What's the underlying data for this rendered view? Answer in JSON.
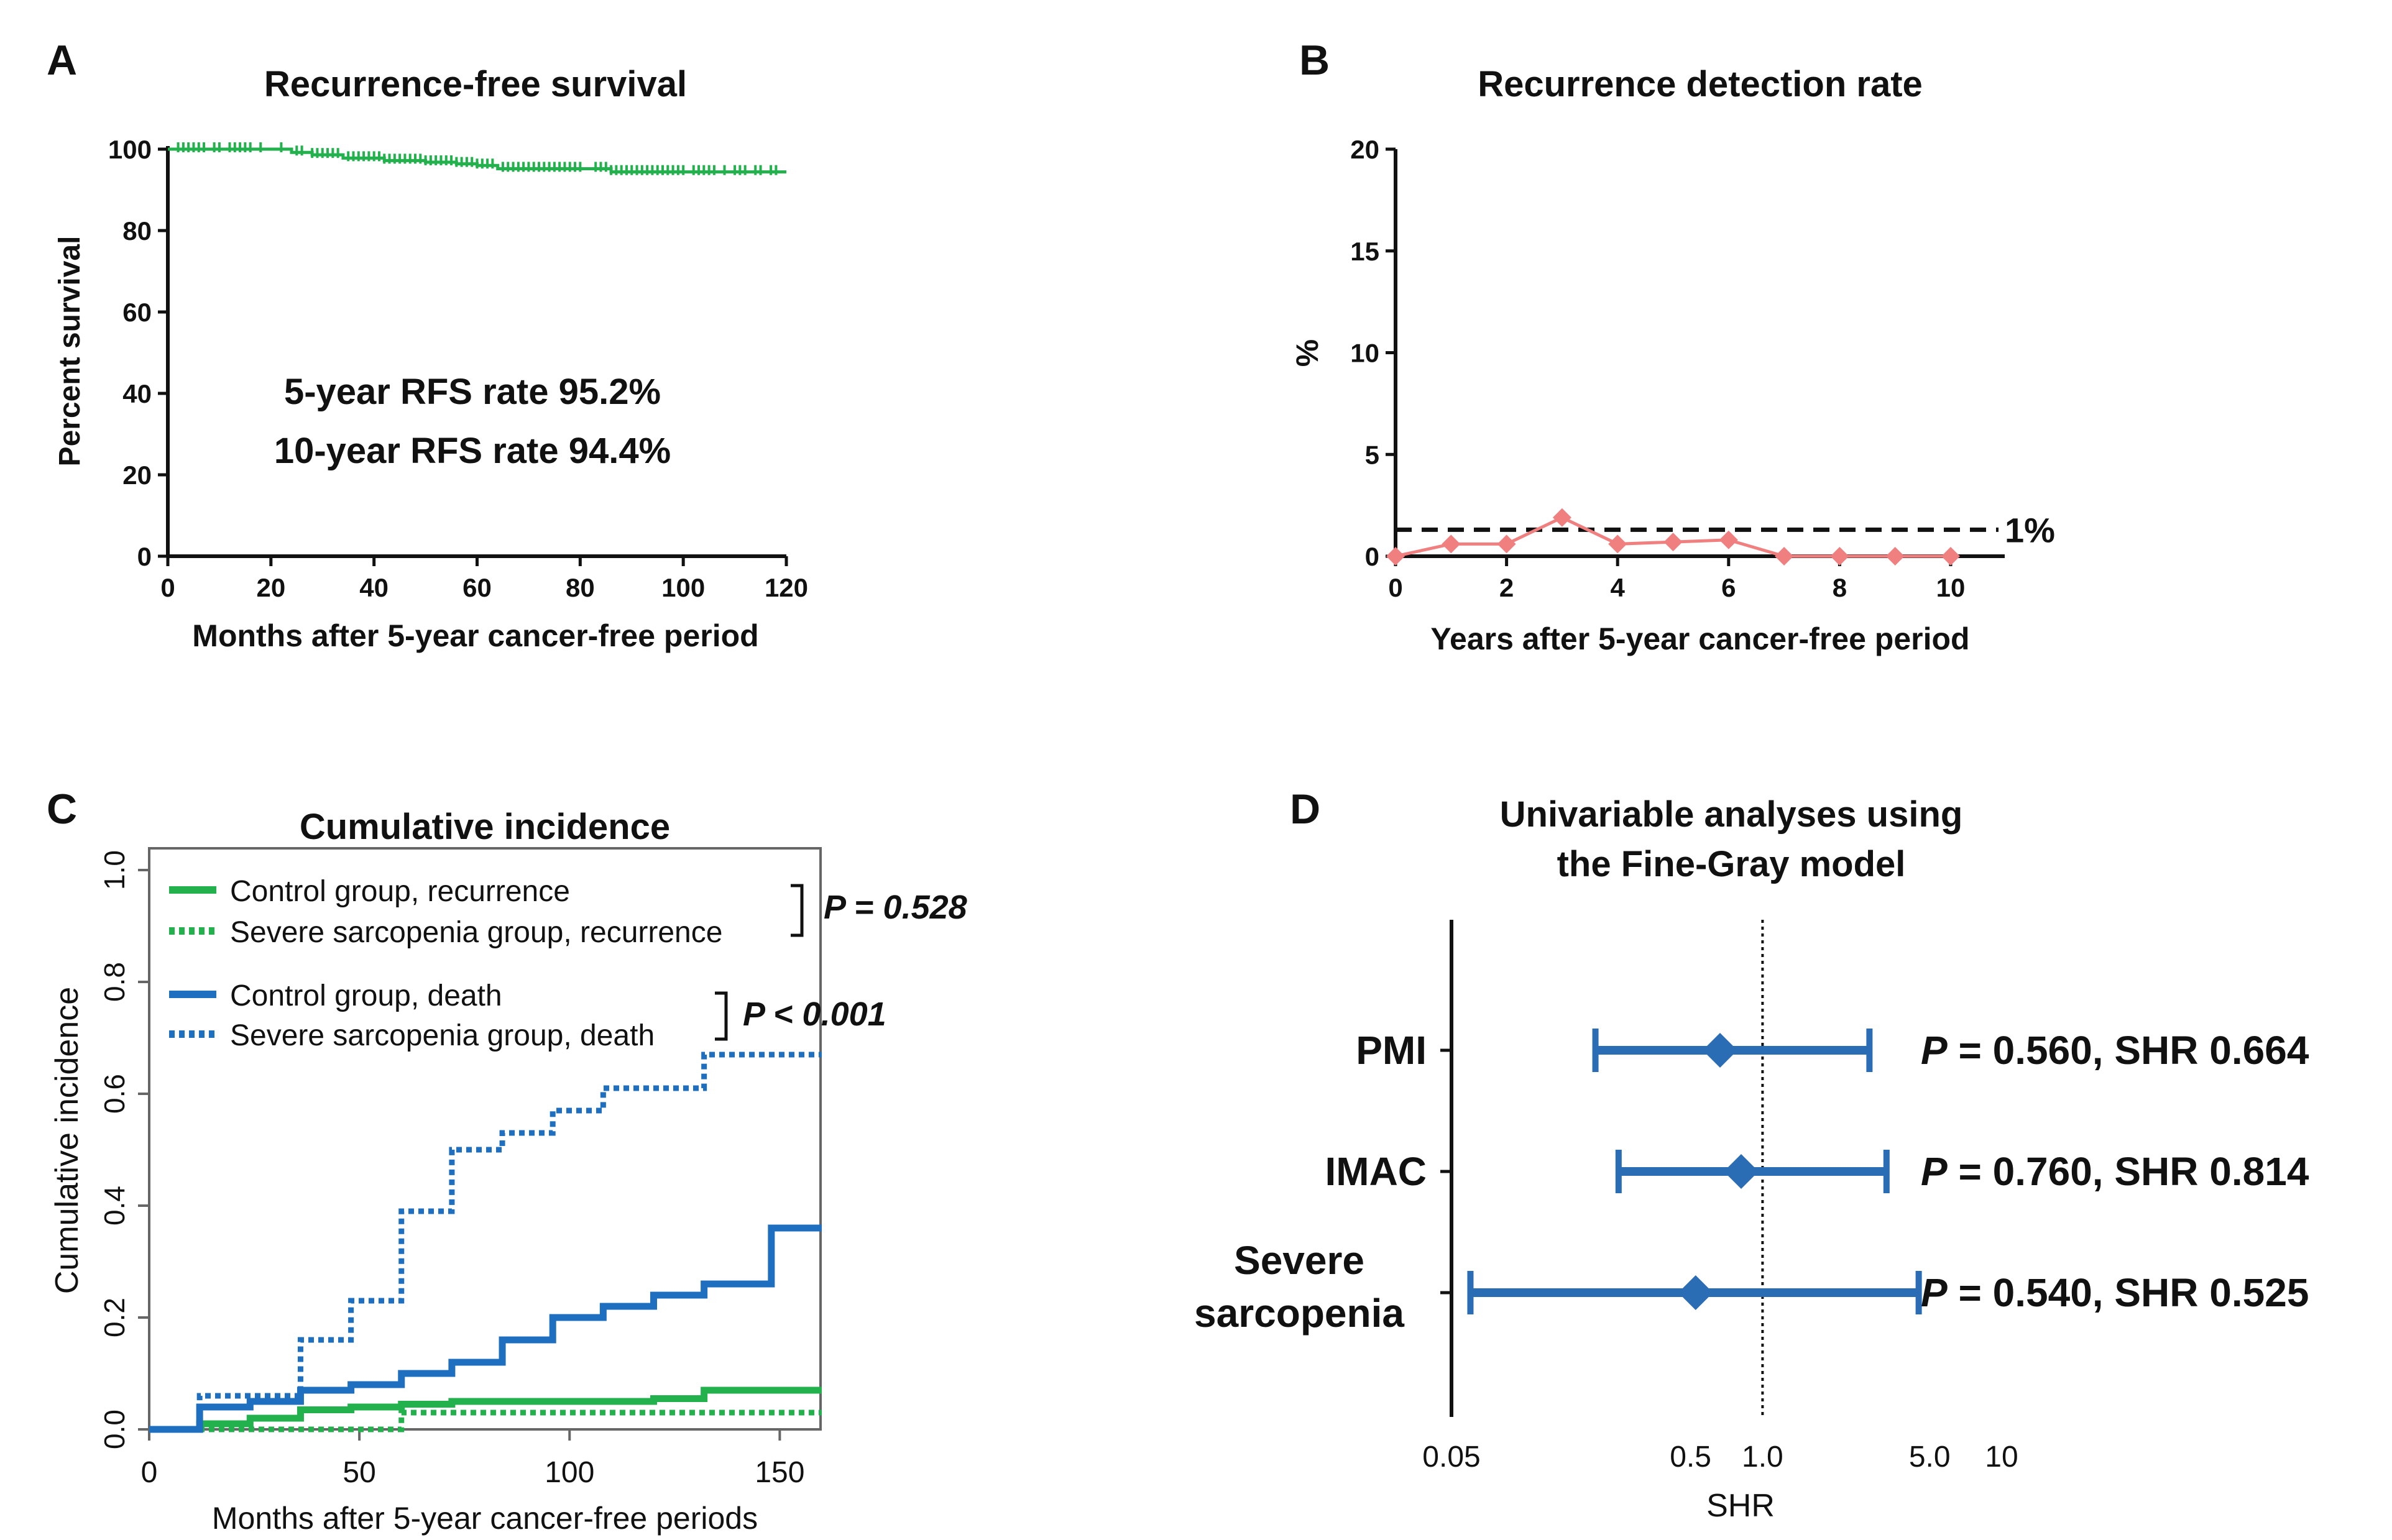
{
  "colors": {
    "green": "#22b14c",
    "blue": "#1f6fc0",
    "pink": "#f08080",
    "forest": "#2a6db5",
    "axis": "#111111"
  },
  "chart_data": [
    {
      "panel": "A",
      "type": "line",
      "title": "Recurrence-free survival",
      "xlabel": "Months after 5-year cancer-free period",
      "ylabel": "Percent survival",
      "xlim": [
        0,
        120
      ],
      "ylim": [
        0,
        100
      ],
      "xticks": [
        "0",
        "20",
        "40",
        "60",
        "80",
        "100",
        "120"
      ],
      "yticks": [
        "0",
        "20",
        "40",
        "60",
        "80",
        "100"
      ],
      "annotations": [
        "5-year RFS rate 95.2%",
        "10-year RFS rate 94.4%"
      ],
      "series": [
        {
          "name": "Recurrence-free survival",
          "color": "green",
          "x": [
            0,
            18,
            24,
            28,
            34,
            42,
            50,
            56,
            60,
            64,
            86,
            120
          ],
          "y": [
            100,
            100,
            99.2,
            98.6,
            97.8,
            97.2,
            96.8,
            96.4,
            96.0,
            95.2,
            94.4,
            94.4
          ]
        }
      ],
      "censor_x": [
        2,
        3,
        4,
        5,
        6,
        7,
        9,
        10,
        12,
        13,
        14,
        15,
        16,
        18,
        22,
        25,
        26,
        28,
        29,
        30,
        31,
        32,
        33,
        35,
        36,
        37,
        38,
        39,
        40,
        41,
        42,
        43,
        44,
        45,
        46,
        47,
        48,
        49,
        50,
        51,
        52,
        53,
        54,
        55,
        56,
        57,
        58,
        59,
        60,
        61,
        62,
        63,
        65,
        66,
        67,
        68,
        69,
        70,
        71,
        72,
        73,
        74,
        75,
        76,
        77,
        78,
        79,
        80,
        83,
        84,
        85,
        86,
        87,
        88,
        89,
        90,
        91,
        92,
        93,
        94,
        95,
        96,
        97,
        98,
        99,
        100,
        102,
        103,
        104,
        105,
        106,
        108,
        110,
        111,
        112,
        114,
        115,
        117,
        118
      ]
    },
    {
      "panel": "B",
      "type": "line",
      "title": "Recurrence detection rate",
      "xlabel": "Years after 5-year cancer-free period",
      "ylabel": "%",
      "xlim": [
        0,
        11
      ],
      "ylim": [
        0,
        20
      ],
      "xticks": [
        "0",
        "2",
        "4",
        "6",
        "8",
        "10"
      ],
      "yticks": [
        "0",
        "5",
        "10",
        "15",
        "20"
      ],
      "reference_line": {
        "y": 1.3,
        "label": "1%"
      },
      "series": [
        {
          "name": "Recurrence detection rate",
          "color": "pink",
          "x": [
            0,
            1,
            2,
            3,
            4,
            5,
            6,
            7,
            8,
            9,
            10
          ],
          "y": [
            0,
            0.6,
            0.6,
            1.9,
            0.6,
            0.7,
            0.8,
            0,
            0,
            0,
            0
          ]
        }
      ]
    },
    {
      "panel": "C",
      "type": "line",
      "title": "Cumulative incidence",
      "xlabel": "Months after 5-year cancer-free periods",
      "ylabel": "Cumulative incidence",
      "xlim": [
        0,
        160
      ],
      "ylim": [
        0,
        1.0
      ],
      "xticks": [
        "0",
        "50",
        "100",
        "150"
      ],
      "yticks": [
        "0.0",
        "0.2",
        "0.4",
        "0.6",
        "0.8",
        "1.0"
      ],
      "p_values": {
        "recurrence": "P = 0.528",
        "death": "P < 0.001"
      },
      "series": [
        {
          "name": "Control group, recurrence",
          "color": "green",
          "style": "solid",
          "x": [
            0,
            12,
            24,
            36,
            48,
            60,
            72,
            84,
            96,
            108,
            120,
            132,
            144,
            160
          ],
          "y": [
            0,
            0.01,
            0.02,
            0.035,
            0.04,
            0.045,
            0.05,
            0.05,
            0.05,
            0.05,
            0.055,
            0.07,
            0.07,
            0.07
          ]
        },
        {
          "name": "Severe sarcopenia group, recurrence",
          "color": "green",
          "style": "dotted",
          "x": [
            0,
            12,
            36,
            60,
            72,
            132,
            148,
            160
          ],
          "y": [
            0,
            0,
            0,
            0.03,
            0.03,
            0.03,
            0.03,
            0.03
          ]
        },
        {
          "name": "Control group, death",
          "color": "blue",
          "style": "solid",
          "x": [
            0,
            12,
            24,
            36,
            48,
            60,
            72,
            84,
            96,
            108,
            120,
            132,
            148,
            160
          ],
          "y": [
            0,
            0.04,
            0.05,
            0.07,
            0.08,
            0.1,
            0.12,
            0.16,
            0.2,
            0.22,
            0.24,
            0.26,
            0.36,
            0.36
          ]
        },
        {
          "name": "Severe sarcopenia group, death",
          "color": "blue",
          "style": "dotted",
          "x": [
            0,
            12,
            24,
            36,
            48,
            60,
            72,
            84,
            96,
            108,
            120,
            132,
            144,
            160
          ],
          "y": [
            0,
            0.06,
            0.06,
            0.16,
            0.23,
            0.39,
            0.5,
            0.53,
            0.57,
            0.61,
            0.61,
            0.67,
            0.67,
            0.67
          ]
        }
      ]
    },
    {
      "panel": "D",
      "type": "scatter",
      "title": "Univariable analyses using the Fine-Gray model",
      "title_lines": [
        "Univariable analyses using",
        "the Fine-Gray model"
      ],
      "xlabel": "SHR",
      "xscale": "log",
      "xlim": [
        0.05,
        10
      ],
      "xticks": [
        "0.05",
        "0.5",
        "1.0",
        "5.0",
        "10"
      ],
      "reference_line": {
        "x": 1.0
      },
      "rows": [
        {
          "label": [
            "PMI"
          ],
          "shr": 0.664,
          "ci": [
            0.2,
            2.8
          ],
          "annotation_p": "P",
          "annotation": " = 0.560, SHR 0.664"
        },
        {
          "label": [
            "IMAC"
          ],
          "shr": 0.814,
          "ci": [
            0.25,
            3.3
          ],
          "annotation_p": "P",
          "annotation": " = 0.760, SHR 0.814"
        },
        {
          "label": [
            "Severe",
            "sarcopenia"
          ],
          "shr": 0.525,
          "ci": [
            0.06,
            4.5
          ],
          "annotation_p": "P",
          "annotation": " = 0.540, SHR 0.525"
        }
      ]
    }
  ],
  "panel_letters": [
    "A",
    "B",
    "C",
    "D"
  ]
}
